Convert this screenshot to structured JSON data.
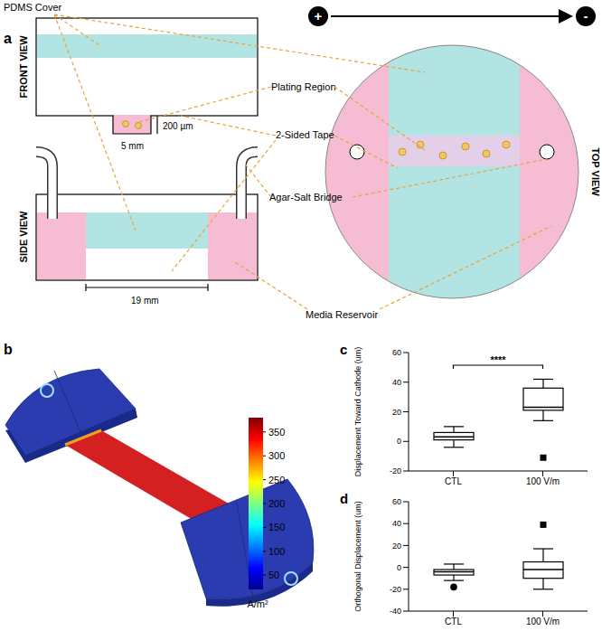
{
  "panel_a": {
    "label": "a",
    "front_view": {
      "title": "FRONT VIEW",
      "scale": "200 µm",
      "width": "5 mm"
    },
    "side_view": {
      "title": "SIDE VIEW",
      "length": "19 mm"
    },
    "top_view": {
      "title": "TOP VIEW",
      "anode": "+",
      "cathode": "-"
    },
    "callouts": [
      "PDMS Cover",
      "Plating Region",
      "2-Sided Tape",
      "Agar-Salt Bridge",
      "Media Reservoir"
    ]
  },
  "panel_b": {
    "label": "b",
    "colorbar": {
      "label": "A/m²",
      "range": [
        20,
        380
      ],
      "ticks": [
        50,
        100,
        150,
        200,
        250,
        300,
        350
      ]
    }
  },
  "chart_data": [
    {
      "label": "c",
      "type": "box",
      "ylabel": "Displacement Toward Cathode (um)",
      "categories": [
        "CTL",
        "100 V/m"
      ],
      "boxes": [
        {
          "whisker_low": -4,
          "q1": 1,
          "median": 3,
          "q3": 6,
          "whisker_high": 10,
          "outliers": []
        },
        {
          "whisker_low": 14,
          "q1": 21,
          "median": 23,
          "q3": 36,
          "whisker_high": 42,
          "outliers": [
            -11
          ],
          "marker": "square"
        }
      ],
      "ylim": [
        -20,
        60
      ],
      "yticks": [
        -20,
        0,
        20,
        40,
        60
      ],
      "annotation": "****"
    },
    {
      "label": "d",
      "type": "box",
      "ylabel": "Orthogonal Displacement (um)",
      "categories": [
        "CTL",
        "100 V/m"
      ],
      "boxes": [
        {
          "whisker_low": -12,
          "q1": -7,
          "median": -4,
          "q3": -2,
          "whisker_high": 3,
          "outliers": [
            -18
          ],
          "marker": "circle"
        },
        {
          "whisker_low": -20,
          "q1": -10,
          "median": -2,
          "q3": 5,
          "whisker_high": 17,
          "outliers": [
            39
          ],
          "marker": "square"
        }
      ],
      "ylim": [
        -40,
        60
      ],
      "yticks": [
        -40,
        -20,
        0,
        20,
        40,
        60
      ]
    }
  ]
}
